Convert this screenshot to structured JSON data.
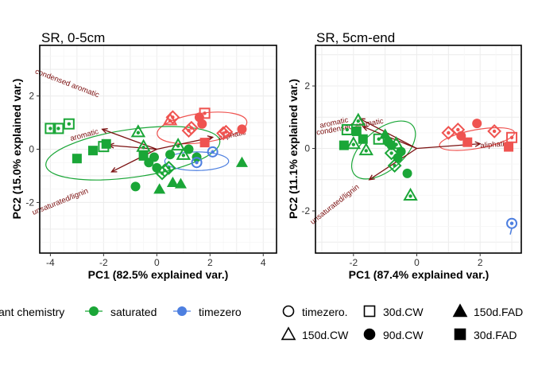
{
  "colors": {
    "aliphatic": "#ef5350",
    "saturated": "#1aa637",
    "timezero": "#4d7fe0",
    "vector": "#7b1111",
    "grid": "#ececec",
    "panel_border": "#000000"
  },
  "chart_data": [
    {
      "type": "scatter",
      "title": "SR, 0-5cm",
      "xlabel": "PC1 (82.5% explained var.)",
      "ylabel": "PC2 (15.0% explained var.)",
      "xlim": [
        -4.4,
        4.5
      ],
      "ylim": [
        -3.9,
        3.9
      ],
      "xticks": [
        -4,
        -2,
        0,
        2,
        4
      ],
      "yticks": [
        -2,
        0,
        2
      ],
      "grid": true,
      "ellipses": [
        {
          "group": "aliphatic",
          "cx": 1.7,
          "cy": 0.8,
          "rx": 1.7,
          "ry": 0.55,
          "angle": -8
        },
        {
          "group": "saturated",
          "cx": -0.9,
          "cy": -0.15,
          "rx": 3.3,
          "ry": 0.9,
          "angle": -8
        },
        {
          "group": "timezero",
          "cx": 1.5,
          "cy": -0.45,
          "rx": 1.2,
          "ry": 0.35,
          "angle": 0
        }
      ],
      "vectors": [
        {
          "label": "condensed aromatic",
          "x": -2.05,
          "y": 0.75,
          "label_x": -3.4,
          "label_y": 2.4,
          "label_angle": 21
        },
        {
          "label": "aromatic",
          "x": -1.8,
          "y": 0.15,
          "label_x": -2.7,
          "label_y": 0.45,
          "label_angle": -15
        },
        {
          "label": "aliphatic",
          "x": 2.1,
          "y": 0.45,
          "label_x": 2.85,
          "label_y": 0.45,
          "label_angle": -12
        },
        {
          "label": "unsaturated/lignin",
          "x": -1.7,
          "y": -0.85,
          "label_x": -3.6,
          "label_y": -2.05,
          "label_angle": -22
        }
      ],
      "points": [
        {
          "x": -4.0,
          "y": 0.78,
          "group": "saturated",
          "shape": "square-open"
        },
        {
          "x": -3.7,
          "y": 0.78,
          "group": "saturated",
          "shape": "square-open"
        },
        {
          "x": -3.3,
          "y": 0.95,
          "group": "saturated",
          "shape": "square-open"
        },
        {
          "x": -3.0,
          "y": -0.35,
          "group": "saturated",
          "shape": "square"
        },
        {
          "x": -2.4,
          "y": -0.05,
          "group": "saturated",
          "shape": "square"
        },
        {
          "x": -2.0,
          "y": 0.1,
          "group": "saturated",
          "shape": "square-open"
        },
        {
          "x": -1.9,
          "y": 0.2,
          "group": "saturated",
          "shape": "square"
        },
        {
          "x": -0.7,
          "y": 0.65,
          "group": "saturated",
          "shape": "triangle-open"
        },
        {
          "x": -0.5,
          "y": 0.1,
          "group": "saturated",
          "shape": "triangle-open"
        },
        {
          "x": -0.5,
          "y": -0.25,
          "group": "saturated",
          "shape": "square"
        },
        {
          "x": -0.8,
          "y": -1.4,
          "group": "saturated",
          "shape": "circle"
        },
        {
          "x": -0.3,
          "y": -0.5,
          "group": "saturated",
          "shape": "circle"
        },
        {
          "x": -0.1,
          "y": -0.3,
          "group": "saturated",
          "shape": "circle"
        },
        {
          "x": 0.0,
          "y": -0.7,
          "group": "saturated",
          "shape": "circle"
        },
        {
          "x": 0.1,
          "y": -1.5,
          "group": "saturated",
          "shape": "triangle"
        },
        {
          "x": 0.2,
          "y": -0.9,
          "group": "saturated",
          "shape": "diamond-open"
        },
        {
          "x": 0.3,
          "y": -0.8,
          "group": "saturated",
          "shape": "diamond-open"
        },
        {
          "x": 0.45,
          "y": -0.7,
          "group": "saturated",
          "shape": "diamond-open"
        },
        {
          "x": 0.5,
          "y": -0.2,
          "group": "saturated",
          "shape": "circle"
        },
        {
          "x": 0.6,
          "y": -1.25,
          "group": "saturated",
          "shape": "triangle"
        },
        {
          "x": 0.8,
          "y": 0.15,
          "group": "saturated",
          "shape": "triangle-open"
        },
        {
          "x": 0.9,
          "y": -1.3,
          "group": "saturated",
          "shape": "triangle"
        },
        {
          "x": 1.0,
          "y": -0.2,
          "group": "saturated",
          "shape": "triangle-open"
        },
        {
          "x": 1.2,
          "y": 0.0,
          "group": "saturated",
          "shape": "circle"
        },
        {
          "x": 1.5,
          "y": -0.3,
          "group": "saturated",
          "shape": "circle"
        },
        {
          "x": 3.2,
          "y": -0.5,
          "group": "saturated",
          "shape": "triangle"
        },
        {
          "x": 0.5,
          "y": 1.1,
          "group": "aliphatic",
          "shape": "triangle-open"
        },
        {
          "x": 0.6,
          "y": 1.2,
          "group": "aliphatic",
          "shape": "diamond-open"
        },
        {
          "x": 1.2,
          "y": 0.7,
          "group": "aliphatic",
          "shape": "diamond-open"
        },
        {
          "x": 1.3,
          "y": 0.8,
          "group": "aliphatic",
          "shape": "diamond-open"
        },
        {
          "x": 1.6,
          "y": 1.2,
          "group": "aliphatic",
          "shape": "circle"
        },
        {
          "x": 1.7,
          "y": 0.95,
          "group": "aliphatic",
          "shape": "circle"
        },
        {
          "x": 1.8,
          "y": 1.35,
          "group": "aliphatic",
          "shape": "square-open"
        },
        {
          "x": 1.8,
          "y": 0.25,
          "group": "aliphatic",
          "shape": "square"
        },
        {
          "x": 2.5,
          "y": 0.6,
          "group": "aliphatic",
          "shape": "diamond-open"
        },
        {
          "x": 2.6,
          "y": 0.65,
          "group": "aliphatic",
          "shape": "diamond-open"
        },
        {
          "x": 3.2,
          "y": 0.75,
          "group": "aliphatic",
          "shape": "circle"
        },
        {
          "x": 1.5,
          "y": -0.5,
          "group": "timezero",
          "shape": "circle-open"
        },
        {
          "x": 2.1,
          "y": -0.1,
          "group": "timezero",
          "shape": "circle-open"
        }
      ]
    },
    {
      "type": "scatter",
      "title": "SR, 5cm-end",
      "xlabel": "PC1 (87.4% explained var.)",
      "ylabel": "PC2 (11.1% explained var.)",
      "xlim": [
        -3.2,
        3.3
      ],
      "ylim": [
        -3.35,
        3.3
      ],
      "xticks": [
        -2,
        0,
        2
      ],
      "yticks": [
        -2,
        0,
        2
      ],
      "grid": true,
      "ellipses": [
        {
          "group": "aliphatic",
          "cx": 1.9,
          "cy": 0.3,
          "rx": 1.2,
          "ry": 0.3,
          "angle": -10
        },
        {
          "group": "saturated",
          "cx": -1.05,
          "cy": -0.05,
          "rx": 1.2,
          "ry": 0.65,
          "angle": -40
        }
      ],
      "vectors": [
        {
          "label": "aromatic",
          "x": -1.8,
          "y": 0.95,
          "label_x": -2.6,
          "label_y": 0.75,
          "label_angle": -12
        },
        {
          "label": "condensed aromatic",
          "x": -1.7,
          "y": 0.7,
          "label_x": -2.1,
          "label_y": 0.62,
          "label_angle": -10
        },
        {
          "label": "aliphatic",
          "x": 2.0,
          "y": 0.15,
          "label_x": 2.45,
          "label_y": 0.05,
          "label_angle": -5
        },
        {
          "label": "unsaturated/lignin",
          "x": -1.5,
          "y": -1.0,
          "label_x": -2.55,
          "label_y": -1.85,
          "label_angle": -38
        }
      ],
      "points": [
        {
          "x": -2.3,
          "y": 0.1,
          "group": "saturated",
          "shape": "square"
        },
        {
          "x": -2.2,
          "y": 0.6,
          "group": "saturated",
          "shape": "square-open"
        },
        {
          "x": -2.0,
          "y": 0.15,
          "group": "saturated",
          "shape": "triangle-open"
        },
        {
          "x": -1.9,
          "y": 0.55,
          "group": "saturated",
          "shape": "square"
        },
        {
          "x": -1.85,
          "y": 0.9,
          "group": "saturated",
          "shape": "triangle-open"
        },
        {
          "x": -1.7,
          "y": 0.3,
          "group": "saturated",
          "shape": "square"
        },
        {
          "x": -1.6,
          "y": -0.05,
          "group": "saturated",
          "shape": "triangle-open"
        },
        {
          "x": -1.2,
          "y": 0.3,
          "group": "saturated",
          "shape": "square-open"
        },
        {
          "x": -1.0,
          "y": 0.45,
          "group": "saturated",
          "shape": "triangle"
        },
        {
          "x": -0.9,
          "y": 0.2,
          "group": "saturated",
          "shape": "circle"
        },
        {
          "x": -0.8,
          "y": 0.1,
          "group": "saturated",
          "shape": "circle"
        },
        {
          "x": -0.8,
          "y": -0.15,
          "group": "saturated",
          "shape": "diamond-open"
        },
        {
          "x": -0.7,
          "y": -0.55,
          "group": "saturated",
          "shape": "diamond-open"
        },
        {
          "x": -0.65,
          "y": 0.15,
          "group": "saturated",
          "shape": "triangle-open"
        },
        {
          "x": -0.6,
          "y": -0.3,
          "group": "saturated",
          "shape": "circle"
        },
        {
          "x": -0.5,
          "y": -0.1,
          "group": "saturated",
          "shape": "circle"
        },
        {
          "x": -0.3,
          "y": -0.8,
          "group": "saturated",
          "shape": "circle"
        },
        {
          "x": -0.2,
          "y": -1.5,
          "group": "saturated",
          "shape": "triangle-open"
        },
        {
          "x": 1.0,
          "y": 0.5,
          "group": "aliphatic",
          "shape": "diamond-open"
        },
        {
          "x": 1.3,
          "y": 0.6,
          "group": "aliphatic",
          "shape": "diamond-open"
        },
        {
          "x": 1.4,
          "y": 0.4,
          "group": "aliphatic",
          "shape": "circle"
        },
        {
          "x": 1.6,
          "y": 0.2,
          "group": "aliphatic",
          "shape": "square"
        },
        {
          "x": 1.9,
          "y": 0.8,
          "group": "aliphatic",
          "shape": "circle"
        },
        {
          "x": 2.45,
          "y": 0.55,
          "group": "aliphatic",
          "shape": "diamond-open"
        },
        {
          "x": 2.9,
          "y": 0.05,
          "group": "aliphatic",
          "shape": "square"
        },
        {
          "x": 3.0,
          "y": 0.35,
          "group": "aliphatic",
          "shape": "square-open"
        },
        {
          "x": 3.0,
          "y": -2.4,
          "group": "timezero",
          "shape": "circle-open"
        }
      ]
    }
  ],
  "legend_color": {
    "title": "ant chemistry",
    "items": [
      {
        "label": "saturated",
        "group": "saturated"
      },
      {
        "label": "timezero",
        "group": "timezero"
      }
    ]
  },
  "legend_shape": {
    "items": [
      {
        "label": "timezero.",
        "shape": "circle-open"
      },
      {
        "label": "30d.CW",
        "shape": "square-open"
      },
      {
        "label": "150d.FAD",
        "shape": "triangle"
      },
      {
        "label": "150d.CW",
        "shape": "triangle-open"
      },
      {
        "label": "90d.CW",
        "shape": "circle"
      },
      {
        "label": "30d.FAD",
        "shape": "square"
      }
    ]
  }
}
